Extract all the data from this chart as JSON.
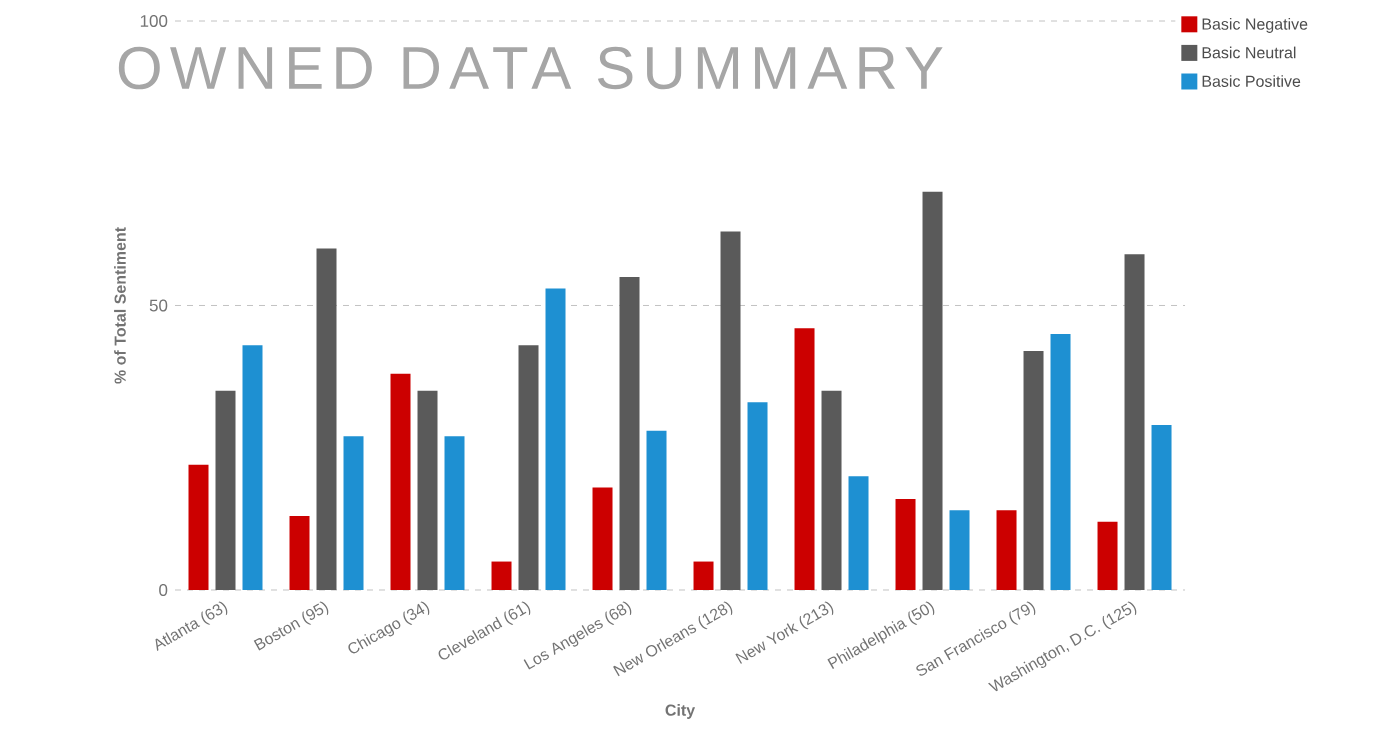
{
  "chart_data": {
    "type": "bar",
    "title": "OWNED DATA SUMMARY",
    "xlabel": "City",
    "ylabel": "% of Total Sentiment",
    "categories": [
      "Atlanta (63)",
      "Boston (95)",
      "Chicago (34)",
      "Cleveland (61)",
      "Los Angeles (68)",
      "New Orleans (128)",
      "New York (213)",
      "Philadelphia (50)",
      "San Francisco (79)",
      "Washington, D.C. (125)"
    ],
    "series": [
      {
        "name": "Basic Negative",
        "color": "#cc0000",
        "values": [
          22,
          13,
          38,
          5,
          18,
          5,
          46,
          16,
          14,
          12
        ]
      },
      {
        "name": "Basic Neutral",
        "color": "#5a5a5a",
        "values": [
          35,
          60,
          35,
          43,
          55,
          63,
          35,
          70,
          42,
          59
        ]
      },
      {
        "name": "Basic Positive",
        "color": "#1e90d2",
        "values": [
          43,
          27,
          27,
          53,
          28,
          33,
          20,
          14,
          45,
          29
        ]
      }
    ],
    "ylim": [
      0,
      100
    ],
    "yticks": [
      0,
      50,
      100
    ],
    "grid": "y",
    "legend": "top right"
  }
}
